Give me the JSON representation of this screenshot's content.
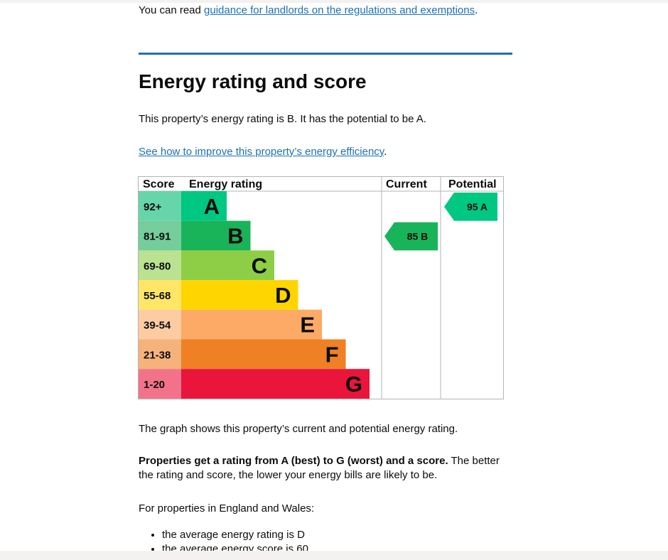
{
  "intro": {
    "prefix": "You can read ",
    "link": "guidance for landlords on the regulations and exemptions",
    "suffix": "."
  },
  "heading": "Energy rating and score",
  "summary": "This property’s energy rating is B. It has the potential to be A.",
  "improve": {
    "link": "See how to improve this property’s energy efficiency",
    "suffix": "."
  },
  "chart_data": {
    "type": "table",
    "columns": [
      "Score",
      "Energy rating",
      "Current",
      "Potential"
    ],
    "bands": [
      {
        "score": "92+",
        "letter": "A",
        "color": "#00c781",
        "score_bg": "#66d5a9"
      },
      {
        "score": "81-91",
        "letter": "B",
        "color": "#19b459",
        "score_bg": "#75cd9b"
      },
      {
        "score": "69-80",
        "letter": "C",
        "color": "#8dce46",
        "score_bg": "#bbe290"
      },
      {
        "score": "55-68",
        "letter": "D",
        "color": "#ffd500",
        "score_bg": "#ffe666"
      },
      {
        "score": "39-54",
        "letter": "E",
        "color": "#fcaa65",
        "score_bg": "#fdcca3"
      },
      {
        "score": "21-38",
        "letter": "F",
        "color": "#ef8023",
        "score_bg": "#f5b37b"
      },
      {
        "score": "1-20",
        "letter": "G",
        "color": "#e9153b",
        "score_bg": "#f27389"
      }
    ],
    "current": {
      "score": 85,
      "band": "B",
      "label": "85 B",
      "color": "#19b459"
    },
    "potential": {
      "score": 95,
      "band": "A",
      "label": "95 A",
      "color": "#00c781"
    }
  },
  "graph_desc": "The graph shows this property’s current and potential energy rating.",
  "explain": {
    "bold": "Properties get a rating from A (best) to G (worst) and a score.",
    "rest": " The better the rating and score, the lower your energy bills are likely to be."
  },
  "country": "For properties in England and Wales:",
  "bullets": [
    "the average energy rating is D",
    "the average energy score is 60"
  ]
}
